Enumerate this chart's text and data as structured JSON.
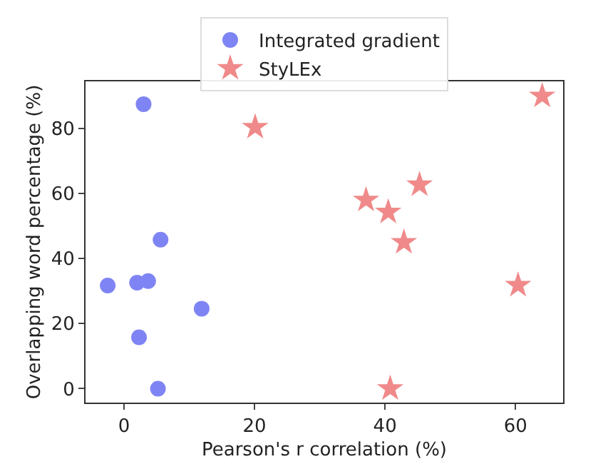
{
  "chart_data": {
    "type": "scatter",
    "xlabel": "Pearson's r correlation (%)",
    "ylabel": "Overlapping word percentage (%)",
    "xlim": [
      -5.9,
      67.3
    ],
    "xticks": [
      0,
      20,
      40,
      60
    ],
    "ylim": [
      -4.3,
      94.5
    ],
    "yticks": [
      0,
      20,
      40,
      60,
      80
    ],
    "grid": false,
    "legend": "top",
    "series": [
      {
        "name": "Integrated gradient",
        "color": "#7f84f4",
        "marker": "circle",
        "x": [
          3.0,
          5.6,
          -2.5,
          2.0,
          3.7,
          11.9,
          2.3,
          5.2
        ],
        "values": [
          87.5,
          45.8,
          31.7,
          32.6,
          33.1,
          24.6,
          15.8,
          0
        ]
      },
      {
        "name": "StyLEx",
        "color": "#f08a8a",
        "marker": "star",
        "x": [
          20.1,
          64.1,
          45.3,
          37.1,
          40.5,
          42.9,
          60.4,
          40.8
        ],
        "values": [
          80.4,
          90.0,
          62.7,
          58.0,
          54.3,
          45.0,
          31.8,
          0
        ]
      }
    ]
  }
}
